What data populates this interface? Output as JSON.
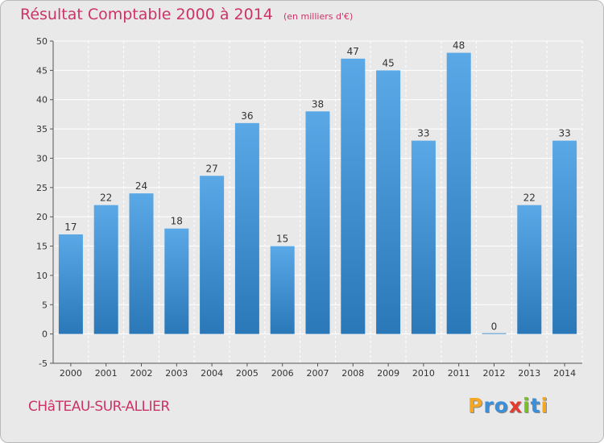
{
  "title": "Résultat Comptable 2000 à 2014",
  "subtitle": "(en milliers d'€)",
  "commune": "CHâTEAU-SUR-ALLIER",
  "logo": {
    "letters": [
      "P",
      "r",
      "o",
      "x",
      "i",
      "t",
      "i"
    ],
    "colors": [
      "#f5a623",
      "#3a8fd8",
      "#3a8fd8",
      "#e23b2f",
      "#7bbf2a",
      "#3a8fd8",
      "#f5a623"
    ]
  },
  "colors": {
    "bar_top": "#5aa8e6",
    "bar_bottom": "#2a78b8",
    "title": "#cc3366",
    "grid": "#ffffff",
    "plot_bg": "#e9e9e9"
  },
  "chart_data": {
    "type": "bar",
    "categories": [
      "2000",
      "2001",
      "2002",
      "2003",
      "2004",
      "2005",
      "2006",
      "2007",
      "2008",
      "2009",
      "2010",
      "2011",
      "2012",
      "2013",
      "2014"
    ],
    "values": [
      17,
      22,
      24,
      18,
      27,
      36,
      15,
      38,
      47,
      45,
      33,
      48,
      0,
      22,
      33
    ],
    "ylim": [
      -5,
      50
    ],
    "yticks": [
      -5,
      0,
      5,
      10,
      15,
      20,
      25,
      30,
      35,
      40,
      45,
      50
    ],
    "grid": true,
    "xlabel": "",
    "ylabel": ""
  }
}
